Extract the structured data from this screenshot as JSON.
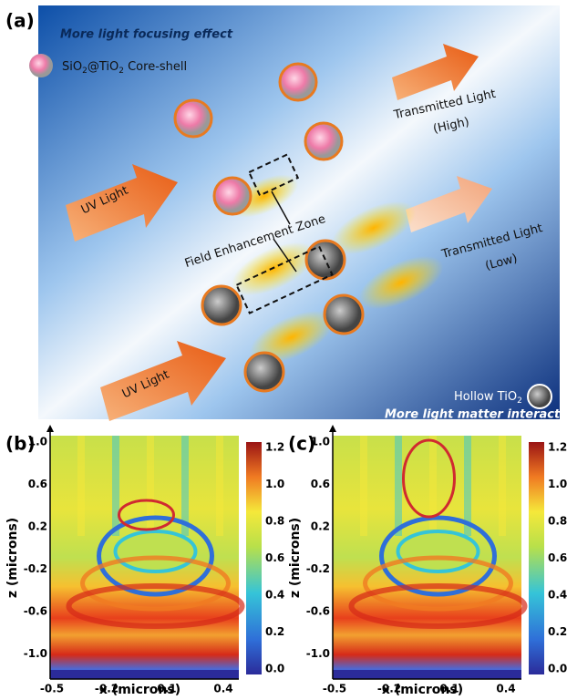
{
  "panel_a": {
    "label": "(a)",
    "focus_note": "More light focusing effect",
    "coreshell_legend": [
      "SiO",
      "2",
      "@TiO",
      "2",
      " Core-shell"
    ],
    "transmitted_high": [
      "Transmitted Light",
      "(High)"
    ],
    "uv_light_top": "UV Light",
    "uv_light_bottom": "UV Light",
    "field_zone": "Field Enhancement Zone",
    "transmitted_low": [
      "Transmitted Light",
      "(Low)"
    ],
    "hollow_legend": [
      "Hollow TiO",
      "2"
    ],
    "interaction_note": "More light matter interaction"
  },
  "panels": [
    {
      "label": "(b)",
      "x_label": "x (microns)",
      "z_label": "z (microns)",
      "x_ticks": [
        "-0.5",
        "-0.2",
        "0.1",
        "0.4"
      ],
      "z_ticks": [
        "1.0",
        "0.6",
        "0.2",
        "-0.2",
        "-0.6",
        "-1.0"
      ],
      "colorbar_ticks": [
        "1.2",
        "1.0",
        "0.8",
        "0.6",
        "0.4",
        "0.2",
        "0.0"
      ]
    },
    {
      "label": "(c)",
      "x_label": "x (microns)",
      "z_label": "z (microns)",
      "x_ticks": [
        "-0.5",
        "-0.2",
        "0.1",
        "0.4"
      ],
      "z_ticks": [
        "1.0",
        "0.6",
        "0.2",
        "-0.2",
        "-0.6",
        "-1.0"
      ],
      "colorbar_ticks": [
        "1.2",
        "1.0",
        "0.8",
        "0.6",
        "0.4",
        "0.2",
        "0.0"
      ]
    }
  ]
}
